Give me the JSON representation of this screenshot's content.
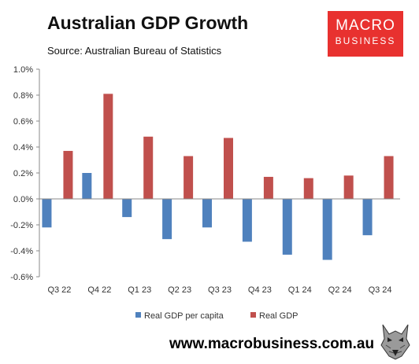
{
  "header": {
    "title": "Australian GDP Growth",
    "subtitle": "Source: Australian Bureau of Statistics"
  },
  "logo": {
    "line1": "MACRO",
    "line2": "BUSINESS",
    "color": "#e8312f"
  },
  "footer": {
    "url": "www.macrobusiness.com.au",
    "mascot_icon": "wolf-icon"
  },
  "chart_data": {
    "type": "bar",
    "categories": [
      "Q3 22",
      "Q4 22",
      "Q1 23",
      "Q2 23",
      "Q3 23",
      "Q4 23",
      "Q1 24",
      "Q2 24",
      "Q3 24"
    ],
    "series": [
      {
        "name": "Real GDP per capita",
        "color": "#4f81bd",
        "values": [
          -0.22,
          0.2,
          -0.14,
          -0.31,
          -0.22,
          -0.33,
          -0.43,
          -0.47,
          -0.28
        ]
      },
      {
        "name": "Real GDP",
        "color": "#c0504d",
        "values": [
          0.37,
          0.81,
          0.48,
          0.33,
          0.47,
          0.17,
          0.16,
          0.18,
          0.33
        ]
      }
    ],
    "ylim": [
      -0.6,
      1.0
    ],
    "yticks": [
      1.0,
      0.8,
      0.6,
      0.4,
      0.2,
      0.0,
      -0.2,
      -0.4,
      -0.6
    ],
    "ytick_labels": [
      "1.0%",
      "0.8%",
      "0.6%",
      "0.4%",
      "0.2%",
      "0.0%",
      "-0.2%",
      "-0.4%",
      "-0.6%"
    ],
    "grid": false,
    "legend": "bottom"
  }
}
